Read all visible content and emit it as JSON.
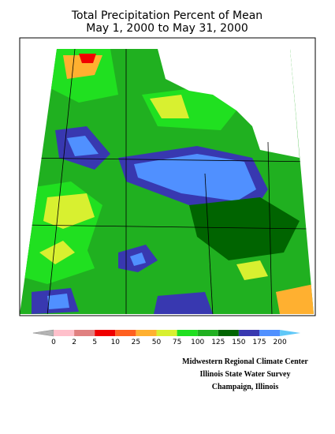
{
  "header": {
    "title_lines": [
      "Total Precipitation Percent of Mean",
      "May 1, 2000 to May 31, 2000"
    ]
  },
  "legend": {
    "ticks": [
      0,
      2,
      5,
      10,
      25,
      50,
      75,
      100,
      125,
      150,
      175,
      200
    ],
    "under_color": "#b4b4b4",
    "colors": [
      "#ffc0cb",
      "#e08080",
      "#f00000",
      "#ff6020",
      "#ffb030",
      "#d8f030",
      "#20e020",
      "#20b020",
      "#006400",
      "#3838b0",
      "#5090ff"
    ],
    "over_color": "#60c8f8"
  },
  "credits": [
    "Midwestern Regional Climate Center",
    "Illinois State Water Survey",
    "Champaign, Illinois"
  ]
}
